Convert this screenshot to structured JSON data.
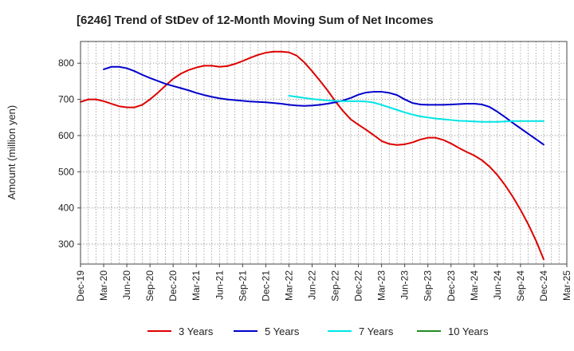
{
  "chart_data": {
    "type": "line",
    "title": "[6246]  Trend of StDev of 12-Month Moving Sum of Net Incomes",
    "xlabel": "",
    "ylabel": "Amount (million yen)",
    "ylim": [
      245,
      860
    ],
    "yticks": [
      300,
      400,
      500,
      600,
      700,
      800
    ],
    "grid": true,
    "legend_position": "bottom",
    "x_dates": [
      "Dec-19",
      "Jan-20",
      "Feb-20",
      "Mar-20",
      "Apr-20",
      "May-20",
      "Jun-20",
      "Jul-20",
      "Aug-20",
      "Sep-20",
      "Oct-20",
      "Nov-20",
      "Dec-20",
      "Jan-21",
      "Feb-21",
      "Mar-21",
      "Apr-21",
      "May-21",
      "Jun-21",
      "Jul-21",
      "Aug-21",
      "Sep-21",
      "Oct-21",
      "Nov-21",
      "Dec-21",
      "Jan-22",
      "Feb-22",
      "Mar-22",
      "Apr-22",
      "May-22",
      "Jun-22",
      "Jul-22",
      "Aug-22",
      "Sep-22",
      "Oct-22",
      "Nov-22",
      "Dec-22",
      "Jan-23",
      "Feb-23",
      "Mar-23",
      "Apr-23",
      "May-23",
      "Jun-23",
      "Jul-23",
      "Aug-23",
      "Sep-23",
      "Oct-23",
      "Nov-23",
      "Dec-23",
      "Jan-24",
      "Feb-24",
      "Mar-24",
      "Apr-24",
      "May-24",
      "Jun-24",
      "Jul-24",
      "Aug-24",
      "Sep-24",
      "Oct-24",
      "Nov-24",
      "Dec-24",
      "Jan-25",
      "Feb-25",
      "Mar-25"
    ],
    "x_tick_labels": [
      "Dec-19",
      "Mar-20",
      "Jun-20",
      "Sep-20",
      "Dec-20",
      "Mar-21",
      "Jun-21",
      "Sep-21",
      "Dec-21",
      "Mar-22",
      "Jun-22",
      "Sep-22",
      "Dec-22",
      "Mar-23",
      "Jun-23",
      "Sep-23",
      "Dec-23",
      "Mar-24",
      "Jun-24",
      "Sep-24",
      "Dec-24",
      "Mar-25"
    ],
    "series": [
      {
        "name": "3 Years",
        "color": "#dd0000",
        "points": [
          [
            "Dec-19",
            693
          ],
          [
            "Jan-20",
            700
          ],
          [
            "Feb-20",
            700
          ],
          [
            "Mar-20",
            695
          ],
          [
            "Apr-20",
            688
          ],
          [
            "May-20",
            681
          ],
          [
            "Jun-20",
            678
          ],
          [
            "Jul-20",
            678
          ],
          [
            "Aug-20",
            685
          ],
          [
            "Sep-20",
            700
          ],
          [
            "Oct-20",
            718
          ],
          [
            "Nov-20",
            738
          ],
          [
            "Dec-20",
            757
          ],
          [
            "Jan-21",
            771
          ],
          [
            "Feb-21",
            781
          ],
          [
            "Mar-21",
            788
          ],
          [
            "Apr-21",
            793
          ],
          [
            "May-21",
            793
          ],
          [
            "Jun-21",
            790
          ],
          [
            "Jul-21",
            792
          ],
          [
            "Aug-21",
            798
          ],
          [
            "Sep-21",
            806
          ],
          [
            "Oct-21",
            815
          ],
          [
            "Nov-21",
            823
          ],
          [
            "Dec-21",
            829
          ],
          [
            "Jan-22",
            832
          ],
          [
            "Feb-22",
            832
          ],
          [
            "Mar-22",
            830
          ],
          [
            "Apr-22",
            821
          ],
          [
            "May-22",
            802
          ],
          [
            "Jun-22",
            778
          ],
          [
            "Jul-22",
            752
          ],
          [
            "Aug-22",
            725
          ],
          [
            "Sep-22",
            695
          ],
          [
            "Oct-22",
            668
          ],
          [
            "Nov-22",
            645
          ],
          [
            "Dec-22",
            630
          ],
          [
            "Jan-23",
            616
          ],
          [
            "Feb-23",
            601
          ],
          [
            "Mar-23",
            585
          ],
          [
            "Apr-23",
            577
          ],
          [
            "May-23",
            574
          ],
          [
            "Jun-23",
            576
          ],
          [
            "Jul-23",
            581
          ],
          [
            "Aug-23",
            589
          ],
          [
            "Sep-23",
            594
          ],
          [
            "Oct-23",
            594
          ],
          [
            "Nov-23",
            588
          ],
          [
            "Dec-23",
            578
          ],
          [
            "Jan-24",
            566
          ],
          [
            "Feb-24",
            555
          ],
          [
            "Mar-24",
            545
          ],
          [
            "Apr-24",
            532
          ],
          [
            "May-24",
            514
          ],
          [
            "Jun-24",
            491
          ],
          [
            "Jul-24",
            463
          ],
          [
            "Aug-24",
            431
          ],
          [
            "Sep-24",
            395
          ],
          [
            "Oct-24",
            355
          ],
          [
            "Nov-24",
            310
          ],
          [
            "Dec-24",
            258
          ]
        ]
      },
      {
        "name": "5 Years",
        "color": "#0000cc",
        "points": [
          [
            "Mar-20",
            783
          ],
          [
            "Apr-20",
            790
          ],
          [
            "May-20",
            790
          ],
          [
            "Jun-20",
            786
          ],
          [
            "Jul-20",
            778
          ],
          [
            "Aug-20",
            768
          ],
          [
            "Sep-20",
            759
          ],
          [
            "Oct-20",
            751
          ],
          [
            "Nov-20",
            743
          ],
          [
            "Dec-20",
            737
          ],
          [
            "Jan-21",
            731
          ],
          [
            "Feb-21",
            725
          ],
          [
            "Mar-21",
            718
          ],
          [
            "Apr-21",
            712
          ],
          [
            "May-21",
            707
          ],
          [
            "Jun-21",
            703
          ],
          [
            "Jul-21",
            700
          ],
          [
            "Aug-21",
            698
          ],
          [
            "Sep-21",
            696
          ],
          [
            "Oct-21",
            694
          ],
          [
            "Nov-21",
            693
          ],
          [
            "Dec-21",
            692
          ],
          [
            "Jan-22",
            690
          ],
          [
            "Feb-22",
            688
          ],
          [
            "Mar-22",
            685
          ],
          [
            "Apr-22",
            683
          ],
          [
            "May-22",
            682
          ],
          [
            "Jun-22",
            683
          ],
          [
            "Jul-22",
            685
          ],
          [
            "Aug-22",
            688
          ],
          [
            "Sep-22",
            692
          ],
          [
            "Oct-22",
            697
          ],
          [
            "Nov-22",
            704
          ],
          [
            "Dec-22",
            713
          ],
          [
            "Jan-23",
            719
          ],
          [
            "Feb-23",
            721
          ],
          [
            "Mar-23",
            721
          ],
          [
            "Apr-23",
            718
          ],
          [
            "May-23",
            712
          ],
          [
            "Jun-23",
            700
          ],
          [
            "Jul-23",
            690
          ],
          [
            "Aug-23",
            686
          ],
          [
            "Sep-23",
            685
          ],
          [
            "Oct-23",
            685
          ],
          [
            "Nov-23",
            685
          ],
          [
            "Dec-23",
            686
          ],
          [
            "Jan-24",
            687
          ],
          [
            "Feb-24",
            688
          ],
          [
            "Mar-24",
            688
          ],
          [
            "Apr-24",
            686
          ],
          [
            "May-24",
            679
          ],
          [
            "Jun-24",
            666
          ],
          [
            "Jul-24",
            651
          ],
          [
            "Aug-24",
            635
          ],
          [
            "Sep-24",
            620
          ],
          [
            "Oct-24",
            605
          ],
          [
            "Nov-24",
            590
          ],
          [
            "Dec-24",
            575
          ]
        ]
      },
      {
        "name": "7 Years",
        "color": "#00e5e5",
        "points": [
          [
            "Mar-22",
            710
          ],
          [
            "Apr-22",
            707
          ],
          [
            "May-22",
            704
          ],
          [
            "Jun-22",
            701
          ],
          [
            "Jul-22",
            699
          ],
          [
            "Aug-22",
            697
          ],
          [
            "Sep-22",
            696
          ],
          [
            "Oct-22",
            695
          ],
          [
            "Nov-22",
            695
          ],
          [
            "Dec-22",
            695
          ],
          [
            "Jan-23",
            694
          ],
          [
            "Feb-23",
            691
          ],
          [
            "Mar-23",
            685
          ],
          [
            "Apr-23",
            678
          ],
          [
            "May-23",
            671
          ],
          [
            "Jun-23",
            664
          ],
          [
            "Jul-23",
            658
          ],
          [
            "Aug-23",
            653
          ],
          [
            "Sep-23",
            650
          ],
          [
            "Oct-23",
            647
          ],
          [
            "Nov-23",
            645
          ],
          [
            "Dec-23",
            643
          ],
          [
            "Jan-24",
            641
          ],
          [
            "Feb-24",
            640
          ],
          [
            "Mar-24",
            639
          ],
          [
            "Apr-24",
            638
          ],
          [
            "May-24",
            638
          ],
          [
            "Jun-24",
            638
          ],
          [
            "Jul-24",
            639
          ],
          [
            "Aug-24",
            640
          ],
          [
            "Sep-24",
            640
          ],
          [
            "Oct-24",
            640
          ],
          [
            "Nov-24",
            640
          ],
          [
            "Dec-24",
            640
          ]
        ]
      },
      {
        "name": "10 Years",
        "color": "#228b22",
        "points": []
      }
    ]
  }
}
